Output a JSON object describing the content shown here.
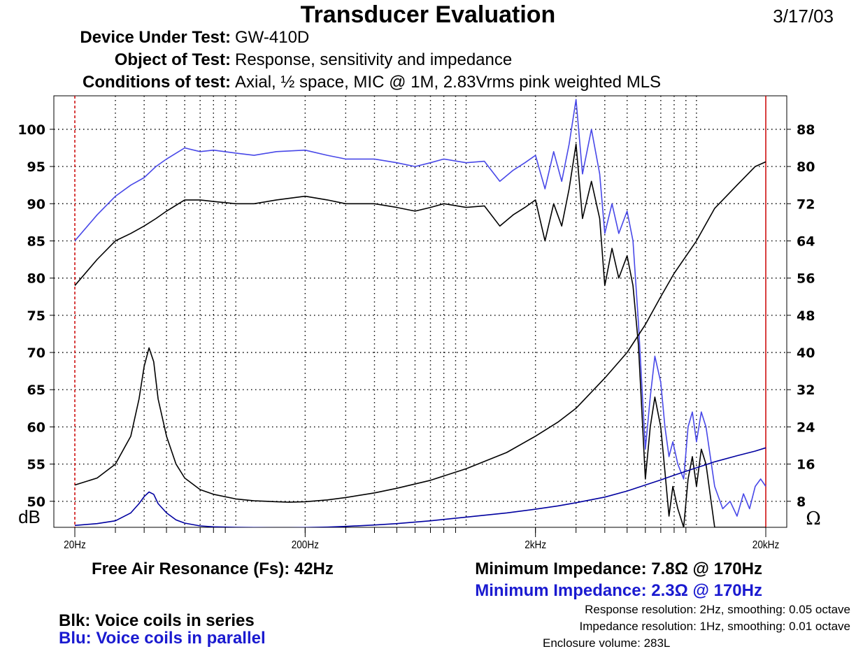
{
  "header": {
    "title": "Transducer Evaluation",
    "date": "3/17/03",
    "device_label": "Device Under Test:",
    "device_value": "GW-410D",
    "object_label": "Object of Test:",
    "object_value": "Response, sensitivity and impedance",
    "conditions_label": "Conditions of test:",
    "conditions_value": "Axial, ½ space, MIC @ 1M, 2.83Vrms pink weighted MLS"
  },
  "footer": {
    "fs": "Free Air Resonance (Fs): 42Hz",
    "min_imp_black": "Minimum Impedance: 7.8Ω @ 170Hz",
    "min_imp_blue": "Minimum Impedance: 2.3Ω @ 170Hz",
    "legend_black": "Blk: Voice coils in series",
    "legend_blue": "Blu: Voice coils in parallel",
    "resp_res": "Response resolution: 2Hz, smoothing: 0.05 octave",
    "imp_res": "Impedance resolution: 1Hz, smoothing: 0.01 octave",
    "enclosure": "Enclosure volume: 283L"
  },
  "chart_data": {
    "type": "line",
    "x_scale": "log",
    "xlim": [
      20,
      20000
    ],
    "x_ticks": [
      20,
      200,
      2000,
      20000
    ],
    "x_tick_labels": [
      "20Hz",
      "200Hz",
      "2kHz",
      "20kHz"
    ],
    "y_left": {
      "label": "dB",
      "lim": [
        46.5,
        104.5
      ],
      "ticks": [
        50,
        55,
        60,
        65,
        70,
        75,
        80,
        85,
        90,
        95,
        100
      ],
      "tick_labels": [
        "50",
        "55",
        "60",
        "65",
        "70",
        "75",
        "80",
        "85",
        "90",
        "95",
        "100"
      ]
    },
    "y_right": {
      "label": "Ω",
      "lim": [
        2.4,
        95.2
      ],
      "ticks": [
        8,
        16,
        24,
        32,
        40,
        48,
        56,
        64,
        72,
        80,
        88
      ],
      "tick_labels": [
        "8",
        "16",
        "24",
        "32",
        "40",
        "48",
        "56",
        "64",
        "72",
        "80",
        "88"
      ]
    },
    "grid": true,
    "markers": [
      {
        "x": 20,
        "color": "#cc0000",
        "style": "dashed"
      },
      {
        "x": 20000,
        "color": "#cc0000",
        "style": "solid"
      }
    ],
    "series": [
      {
        "name": "Blk: Voice coils in series",
        "quantity": "response_dB",
        "axis": "left",
        "color": "#000000",
        "x": [
          20,
          25,
          30,
          35,
          40,
          45,
          50,
          60,
          70,
          80,
          100,
          120,
          150,
          200,
          250,
          300,
          400,
          500,
          600,
          700,
          800,
          1000,
          1200,
          1400,
          1600,
          1800,
          2000,
          2200,
          2400,
          2600,
          2800,
          3000,
          3200,
          3500,
          3800,
          4000,
          4300,
          4600,
          5000,
          5300,
          5600,
          6000,
          6300,
          6600,
          7000,
          7300,
          7600,
          7900,
          8300,
          8800,
          9200,
          9600,
          10000,
          10500,
          11000,
          12000,
          13000,
          14000,
          15000,
          16000,
          17000,
          18000,
          19000,
          20000
        ],
        "y": [
          79,
          82.5,
          85,
          86,
          87,
          88,
          89,
          90.5,
          90.5,
          90.3,
          90,
          90,
          90.5,
          91,
          90.5,
          90,
          90,
          89.5,
          89,
          89.5,
          90,
          89.5,
          89.7,
          87,
          88.5,
          89.5,
          90.5,
          85,
          90,
          87,
          92,
          98,
          88,
          93,
          88,
          79,
          84,
          80,
          83,
          79,
          71,
          53,
          60,
          64,
          60,
          54,
          48,
          52,
          49,
          46.5,
          53,
          56,
          52,
          57,
          55,
          46.5,
          46.5,
          46.5,
          46.5,
          46.5,
          46.5,
          46.5,
          46.5,
          46.5
        ]
      },
      {
        "name": "Blu: Voice coils in parallel",
        "quantity": "response_dB",
        "axis": "left",
        "color": "#4848e8",
        "x": [
          20,
          25,
          30,
          35,
          40,
          45,
          50,
          60,
          70,
          80,
          100,
          120,
          150,
          200,
          250,
          300,
          400,
          500,
          600,
          700,
          800,
          1000,
          1200,
          1400,
          1600,
          1800,
          2000,
          2200,
          2400,
          2600,
          2800,
          3000,
          3200,
          3500,
          3800,
          4000,
          4300,
          4600,
          5000,
          5300,
          5600,
          6000,
          6300,
          6600,
          7000,
          7300,
          7600,
          7900,
          8300,
          8800,
          9200,
          9600,
          10000,
          10500,
          11000,
          12000,
          13000,
          14000,
          15000,
          16000,
          17000,
          18000,
          19000,
          20000
        ],
        "y": [
          85,
          88.5,
          91,
          92.5,
          93.5,
          95,
          96,
          97.5,
          97,
          97.2,
          96.8,
          96.5,
          97,
          97.2,
          96.5,
          96,
          96,
          95.5,
          95,
          95.5,
          96,
          95.5,
          95.7,
          93,
          94.5,
          95.5,
          96.5,
          92,
          97,
          93,
          98,
          104,
          94,
          100,
          94,
          86,
          90,
          86,
          89,
          85,
          74,
          57,
          64,
          69.5,
          66,
          60,
          56,
          58,
          55,
          53,
          60,
          62,
          58,
          62,
          60,
          52,
          49,
          50,
          48,
          51,
          49,
          52,
          53,
          52
        ]
      },
      {
        "name": "Blk: Voice coils in series",
        "quantity": "impedance_ohm",
        "axis": "right",
        "color": "#000000",
        "x": [
          20,
          25,
          30,
          35,
          38,
          40,
          42,
          44,
          46,
          50,
          55,
          60,
          70,
          80,
          100,
          120,
          150,
          170,
          200,
          250,
          300,
          400,
          500,
          700,
          1000,
          1500,
          2000,
          2500,
          3000,
          4000,
          5000,
          6000,
          7000,
          8000,
          10000,
          12000,
          15000,
          18000,
          20000
        ],
        "y": [
          11.5,
          13,
          16,
          22,
          30,
          37,
          41,
          38,
          30,
          22,
          16,
          13,
          10.5,
          9.5,
          8.5,
          8.1,
          7.9,
          7.8,
          7.9,
          8.3,
          8.8,
          9.8,
          10.8,
          12.5,
          15,
          18.5,
          22,
          25,
          28,
          34.5,
          40,
          46,
          52,
          57,
          64,
          71,
          76,
          80,
          81
        ]
      },
      {
        "name": "Blu: Voice coils in parallel",
        "quantity": "impedance_ohm",
        "axis": "right",
        "color": "#0000a0",
        "x": [
          20,
          25,
          30,
          35,
          38,
          40,
          42,
          44,
          46,
          50,
          55,
          60,
          70,
          80,
          100,
          120,
          150,
          170,
          200,
          250,
          300,
          400,
          500,
          700,
          1000,
          1500,
          2000,
          2500,
          3000,
          4000,
          5000,
          6000,
          7000,
          8000,
          10000,
          12000,
          15000,
          18000,
          20000
        ],
        "y": [
          2.8,
          3.2,
          3.8,
          5.5,
          7.5,
          9,
          10,
          9.5,
          7.5,
          5.5,
          4,
          3.3,
          2.7,
          2.5,
          2.4,
          2.35,
          2.3,
          2.3,
          2.35,
          2.45,
          2.6,
          2.9,
          3.2,
          3.8,
          4.6,
          5.5,
          6.3,
          7,
          7.7,
          8.9,
          10.2,
          11.5,
          12.6,
          13.6,
          15.2,
          16.5,
          17.8,
          18.8,
          19.5
        ]
      }
    ]
  }
}
